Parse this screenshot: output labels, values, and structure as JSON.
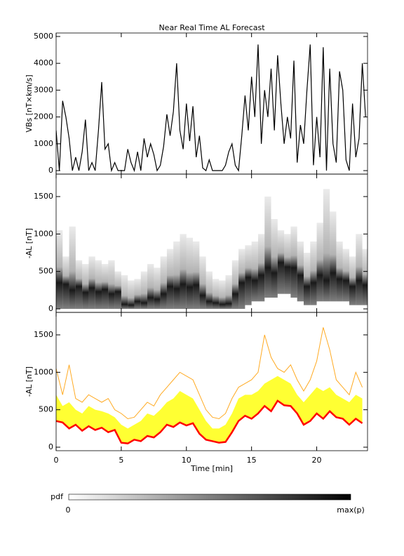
{
  "chart_data": [
    {
      "type": "line",
      "title": "Near Real Time AL Forecast",
      "ylabel": "VBs [nT×km/s]",
      "x": [
        0,
        0.25,
        0.5,
        0.75,
        1,
        1.25,
        1.5,
        1.75,
        2,
        2.25,
        2.5,
        2.75,
        3,
        3.25,
        3.5,
        3.75,
        4,
        4.25,
        4.5,
        4.75,
        5,
        5.25,
        5.5,
        5.75,
        6,
        6.25,
        6.5,
        6.75,
        7,
        7.25,
        7.5,
        7.75,
        8,
        8.25,
        8.5,
        8.75,
        9,
        9.25,
        9.5,
        9.75,
        10,
        10.25,
        10.5,
        10.75,
        11,
        11.25,
        11.5,
        11.75,
        12,
        12.25,
        12.5,
        12.75,
        13,
        13.25,
        13.5,
        13.75,
        14,
        14.25,
        14.5,
        14.75,
        15,
        15.25,
        15.5,
        15.75,
        16,
        16.25,
        16.5,
        16.75,
        17,
        17.25,
        17.5,
        17.75,
        18,
        18.25,
        18.5,
        18.75,
        19,
        19.25,
        19.5,
        19.75,
        20,
        20.25,
        20.5,
        20.75,
        21,
        21.25,
        21.5,
        21.75,
        22,
        22.25,
        22.5,
        22.75,
        23,
        23.25,
        23.5,
        23.75
      ],
      "values": [
        1500,
        0,
        2600,
        2000,
        1200,
        0,
        500,
        0,
        700,
        1900,
        0,
        300,
        0,
        1500,
        3300,
        800,
        1000,
        0,
        300,
        0,
        0,
        0,
        800,
        300,
        0,
        700,
        0,
        1200,
        500,
        1000,
        600,
        0,
        200,
        900,
        2100,
        1300,
        2200,
        4000,
        1500,
        800,
        2500,
        1100,
        2400,
        500,
        1300,
        100,
        0,
        400,
        0,
        0,
        0,
        0,
        200,
        700,
        1000,
        200,
        0,
        1300,
        2800,
        1500,
        3500,
        2000,
        4700,
        1000,
        3000,
        2000,
        3800,
        1500,
        4300,
        2500,
        1000,
        2000,
        1200,
        4100,
        300,
        1700,
        1000,
        3000,
        4700,
        200,
        2000,
        500,
        4600,
        0,
        3800,
        1000,
        300,
        3700,
        3000,
        400,
        0,
        2500,
        500,
        1200,
        4000,
        2000
      ],
      "color": "#000000",
      "xlim": [
        0,
        23.9
      ],
      "xticks": [
        0,
        5,
        10,
        15,
        20
      ],
      "ylim": [
        -130,
        5130
      ],
      "yticks": [
        0,
        1000,
        2000,
        3000,
        4000,
        5000
      ]
    },
    {
      "type": "heatmap",
      "ylabel": "-AL [nT]",
      "x": [
        0,
        0.5,
        1,
        1.5,
        2,
        2.5,
        3,
        3.5,
        4,
        4.5,
        5,
        5.5,
        6,
        6.5,
        7,
        7.5,
        8,
        8.5,
        9,
        9.5,
        10,
        10.5,
        11,
        11.5,
        12,
        12.5,
        13,
        13.5,
        14,
        14.5,
        15,
        15.5,
        16,
        16.5,
        17,
        17.5,
        18,
        18.5,
        19,
        19.5,
        20,
        20.5,
        21,
        21.5,
        22,
        22.5,
        23,
        23.5
      ],
      "low": [
        0,
        0,
        0,
        0,
        0,
        0,
        0,
        0,
        0,
        0,
        0,
        0,
        0,
        0,
        0,
        0,
        0,
        0,
        0,
        0,
        0,
        0,
        0,
        0,
        0,
        0,
        0,
        0,
        0,
        50,
        100,
        100,
        150,
        150,
        200,
        200,
        150,
        100,
        50,
        50,
        100,
        100,
        100,
        100,
        100,
        50,
        50,
        50
      ],
      "mode": [
        350,
        330,
        250,
        300,
        220,
        280,
        230,
        260,
        200,
        230,
        60,
        50,
        100,
        80,
        150,
        130,
        200,
        300,
        270,
        330,
        290,
        320,
        180,
        100,
        80,
        60,
        70,
        200,
        350,
        420,
        380,
        450,
        550,
        480,
        620,
        560,
        550,
        450,
        300,
        350,
        450,
        380,
        480,
        400,
        380,
        300,
        380,
        320
      ],
      "high": [
        1050,
        700,
        1100,
        650,
        600,
        700,
        650,
        600,
        650,
        500,
        450,
        380,
        400,
        500,
        600,
        550,
        700,
        800,
        900,
        1000,
        950,
        900,
        700,
        500,
        400,
        380,
        450,
        650,
        800,
        850,
        900,
        1000,
        1500,
        1200,
        1050,
        1000,
        1100,
        900,
        750,
        900,
        1150,
        1600,
        1300,
        900,
        800,
        700,
        1000,
        800
      ],
      "xlim": [
        0,
        23.9
      ],
      "xticks": [
        0,
        5,
        10,
        15,
        20
      ],
      "ylim": [
        -47,
        1800
      ],
      "yticks": [
        0,
        500,
        1000,
        1500
      ],
      "colorbar": {
        "label": "pdf",
        "min_label": "0",
        "max_label": "max(p)"
      }
    },
    {
      "type": "band",
      "ylabel": "-AL [nT]",
      "xlabel": "Time [min]",
      "x": [
        0,
        0.5,
        1,
        1.5,
        2,
        2.5,
        3,
        3.5,
        4,
        4.5,
        5,
        5.5,
        6,
        6.5,
        7,
        7.5,
        8,
        8.5,
        9,
        9.5,
        10,
        10.5,
        11,
        11.5,
        12,
        12.5,
        13,
        13.5,
        14,
        14.5,
        15,
        15.5,
        16,
        16.5,
        17,
        17.5,
        18,
        18.5,
        19,
        19.5,
        20,
        20.5,
        21,
        21.5,
        22,
        22.5,
        23,
        23.5
      ],
      "median": [
        350,
        330,
        250,
        300,
        220,
        280,
        230,
        260,
        200,
        230,
        60,
        50,
        100,
        80,
        150,
        130,
        200,
        300,
        270,
        330,
        290,
        320,
        180,
        100,
        80,
        60,
        70,
        200,
        350,
        420,
        380,
        450,
        550,
        480,
        620,
        560,
        550,
        450,
        300,
        350,
        450,
        380,
        480,
        400,
        380,
        300,
        380,
        320
      ],
      "upper": [
        700,
        550,
        600,
        500,
        450,
        550,
        500,
        480,
        450,
        400,
        300,
        250,
        300,
        350,
        450,
        420,
        500,
        600,
        650,
        750,
        700,
        650,
        500,
        350,
        250,
        250,
        300,
        450,
        650,
        700,
        700,
        750,
        850,
        900,
        950,
        900,
        850,
        700,
        600,
        700,
        800,
        750,
        800,
        700,
        650,
        600,
        700,
        650
      ],
      "envelope": [
        1050,
        700,
        1100,
        650,
        600,
        700,
        650,
        600,
        650,
        500,
        450,
        380,
        400,
        500,
        600,
        550,
        700,
        800,
        900,
        1000,
        950,
        900,
        700,
        500,
        400,
        380,
        450,
        650,
        800,
        850,
        900,
        1000,
        1500,
        1200,
        1050,
        1000,
        1100,
        900,
        750,
        900,
        1150,
        1600,
        1300,
        900,
        800,
        700,
        1000,
        800
      ],
      "colors": {
        "median": "#ff0000",
        "band": "#ffff33",
        "envelope": "#ffaa22"
      },
      "xlim": [
        0,
        23.9
      ],
      "xticks": [
        0,
        5,
        10,
        15,
        20
      ],
      "ylim": [
        -47,
        1800
      ],
      "yticks": [
        0,
        500,
        1000,
        1500
      ]
    }
  ]
}
